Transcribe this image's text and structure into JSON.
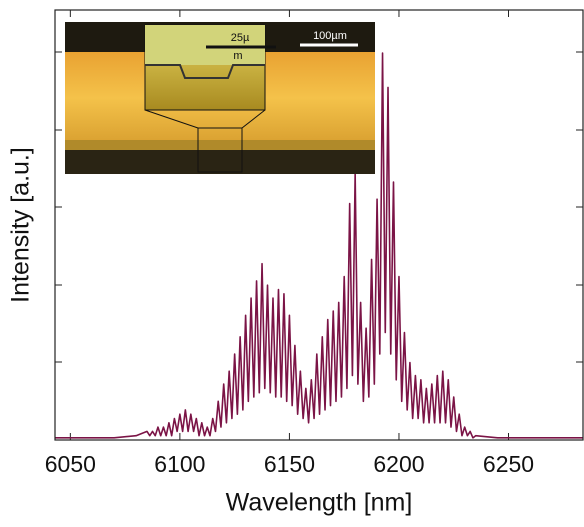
{
  "chart_data": {
    "type": "line",
    "x_label": "Wavelength [nm]",
    "y_label": "Intensity [a.u.]",
    "xlim": [
      6043,
      6284
    ],
    "xticks": [
      6050,
      6100,
      6150,
      6200,
      6250
    ],
    "ylim": [
      0,
      1
    ],
    "color": "#7b1446",
    "inset": {
      "scale_large": "100µm",
      "scale_small_top": "25µ",
      "scale_small_bottom": "m"
    },
    "x": [
      6043,
      6070,
      6080,
      6085,
      6086.25,
      6087.5,
      6088.75,
      6090,
      6091.25,
      6092.5,
      6093.75,
      6095,
      6096.25,
      6097.5,
      6098.75,
      6100,
      6101.25,
      6102.5,
      6103.75,
      6105,
      6106.25,
      6107.5,
      6108.75,
      6110,
      6111.25,
      6112.5,
      6113.75,
      6115,
      6116.25,
      6117.5,
      6118.75,
      6120,
      6121.25,
      6122.5,
      6123.75,
      6125,
      6126.25,
      6127.5,
      6128.75,
      6130,
      6131.25,
      6132.5,
      6133.75,
      6135,
      6136.25,
      6137.5,
      6138.75,
      6140,
      6141.25,
      6142.5,
      6143.75,
      6145,
      6146.25,
      6147.5,
      6148.75,
      6150,
      6151.25,
      6152.5,
      6153.75,
      6155,
      6156.25,
      6157.5,
      6158.75,
      6160,
      6161.25,
      6162.5,
      6163.75,
      6165,
      6166.25,
      6167.5,
      6168.75,
      6170,
      6171.25,
      6172.5,
      6173.75,
      6175,
      6176.25,
      6177.5,
      6178.75,
      6180,
      6181.25,
      6182.5,
      6183.75,
      6185,
      6186.25,
      6187.5,
      6188.75,
      6190,
      6191.25,
      6192.5,
      6193.75,
      6195,
      6196.25,
      6197.5,
      6198.75,
      6200,
      6201.25,
      6202.5,
      6203.75,
      6205,
      6206.25,
      6207.5,
      6208.75,
      6210,
      6211.25,
      6212.5,
      6213.75,
      6215,
      6216.25,
      6217.5,
      6218.75,
      6220,
      6221.25,
      6222.5,
      6223.75,
      6225,
      6226.25,
      6227.5,
      6228.75,
      6230,
      6231.25,
      6232.5,
      6233.75,
      6235,
      6245,
      6284
    ],
    "values": [
      0.005,
      0.005,
      0.01,
      0.02,
      0.01,
      0.02,
      0.01,
      0.03,
      0.01,
      0.03,
      0.01,
      0.04,
      0.01,
      0.05,
      0.02,
      0.06,
      0.02,
      0.07,
      0.02,
      0.06,
      0.02,
      0.05,
      0.01,
      0.04,
      0.01,
      0.03,
      0.01,
      0.05,
      0.02,
      0.09,
      0.03,
      0.13,
      0.04,
      0.16,
      0.05,
      0.2,
      0.06,
      0.24,
      0.07,
      0.29,
      0.09,
      0.33,
      0.1,
      0.37,
      0.11,
      0.41,
      0.12,
      0.36,
      0.11,
      0.33,
      0.1,
      0.35,
      0.1,
      0.34,
      0.09,
      0.29,
      0.08,
      0.22,
      0.06,
      0.16,
      0.05,
      0.12,
      0.04,
      0.14,
      0.05,
      0.2,
      0.06,
      0.24,
      0.07,
      0.28,
      0.08,
      0.3,
      0.09,
      0.32,
      0.1,
      0.38,
      0.12,
      0.55,
      0.15,
      0.62,
      0.13,
      0.32,
      0.09,
      0.26,
      0.1,
      0.42,
      0.13,
      0.56,
      0.2,
      0.9,
      0.25,
      0.82,
      0.2,
      0.6,
      0.14,
      0.38,
      0.09,
      0.25,
      0.07,
      0.18,
      0.05,
      0.15,
      0.05,
      0.14,
      0.04,
      0.12,
      0.04,
      0.13,
      0.04,
      0.15,
      0.04,
      0.16,
      0.04,
      0.14,
      0.03,
      0.1,
      0.02,
      0.06,
      0.01,
      0.03,
      0.01,
      0.02,
      0.005,
      0.01,
      0.005,
      0.005
    ]
  }
}
